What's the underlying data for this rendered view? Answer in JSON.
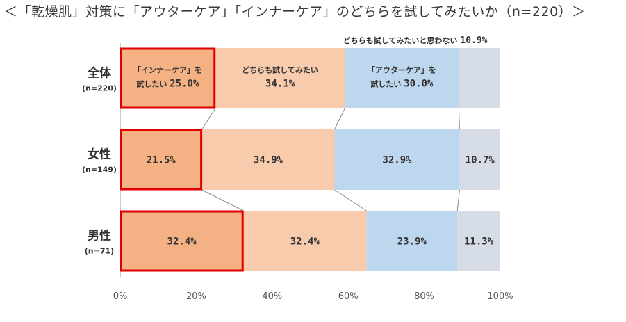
{
  "title": "＜「乾燥肌」対策に「アウターケア」「インナーケア」のどちらを試してみたいか（n=220）＞",
  "chart_data": {
    "type": "bar",
    "orientation": "horizontal-stacked-100",
    "categories": [
      {
        "name": "全体",
        "n": "(n=220)"
      },
      {
        "name": "女性",
        "n": "(n=149)"
      },
      {
        "name": "男性",
        "n": "(n=71)"
      }
    ],
    "series": [
      {
        "name": "「インナーケア」を試したい",
        "color": "#f4b183",
        "values": [
          25.0,
          21.5,
          32.4
        ],
        "labels": [
          "25.0%",
          "21.5%",
          "32.4%"
        ]
      },
      {
        "name": "どちらも試してみたい",
        "color": "#f8cbad",
        "values": [
          34.1,
          34.9,
          32.4
        ],
        "labels": [
          "34.1%",
          "34.9%",
          "32.4%"
        ]
      },
      {
        "name": "「アウターケア」を試したい",
        "color": "#bdd7ee",
        "values": [
          30.0,
          32.9,
          23.9
        ],
        "labels": [
          "30.0%",
          "32.9%",
          "23.9%"
        ]
      },
      {
        "name": "どちらも試してみたいと思わない",
        "color": "#d6dce5",
        "values": [
          10.9,
          10.7,
          11.3
        ],
        "labels": [
          "10.9%",
          "10.7%",
          "11.3%"
        ]
      }
    ],
    "inline_labels": {
      "row0_seg0": [
        "「インナーケア」を",
        "試したい"
      ],
      "row0_seg1": "どちらも試してみたい",
      "row0_seg2": [
        "「アウターケア」を",
        "試したい"
      ],
      "row0_seg3": "どちらも試してみたいと思わない"
    },
    "highlight_color": "#e00000",
    "xticks": [
      "0%",
      "20%",
      "40%",
      "60%",
      "80%",
      "100%"
    ],
    "xlim": [
      0,
      100
    ]
  }
}
